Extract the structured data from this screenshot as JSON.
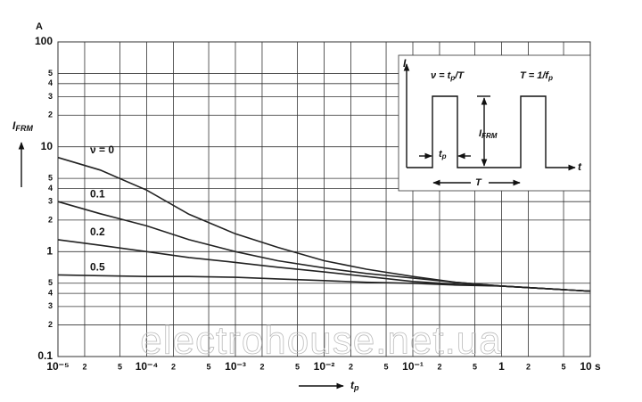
{
  "chart_data": {
    "type": "line",
    "ylabel": {
      "main": "I",
      "sub": "FRM"
    },
    "yunit": "A",
    "xlabel": {
      "main": "t",
      "sub": "p"
    },
    "log_x": true,
    "log_y": true,
    "grid": true,
    "xlim": [
      1e-05,
      10
    ],
    "ylim": [
      0.1,
      100
    ],
    "xticks": [
      {
        "value": 1e-05,
        "label": "10⁻⁵"
      },
      {
        "value": 2e-05,
        "label": "2"
      },
      {
        "value": 5e-05,
        "label": "5"
      },
      {
        "value": 0.0001,
        "label": "10⁻⁴"
      },
      {
        "value": 0.0002,
        "label": "2"
      },
      {
        "value": 0.0005,
        "label": "5"
      },
      {
        "value": 0.001,
        "label": "10⁻³"
      },
      {
        "value": 0.002,
        "label": "2"
      },
      {
        "value": 0.005,
        "label": "5"
      },
      {
        "value": 0.01,
        "label": "10⁻²"
      },
      {
        "value": 0.02,
        "label": "2"
      },
      {
        "value": 0.05,
        "label": "5"
      },
      {
        "value": 0.1,
        "label": "10⁻¹"
      },
      {
        "value": 0.2,
        "label": "2"
      },
      {
        "value": 0.5,
        "label": "5"
      },
      1,
      {
        "value": 2,
        "label": "2"
      },
      {
        "value": 5,
        "label": "5"
      },
      {
        "value": 10,
        "label": "10 s"
      }
    ],
    "yticks": [
      0.1,
      {
        "value": 0.2,
        "label": "2"
      },
      {
        "value": 0.3,
        "label": "3"
      },
      {
        "value": 0.4,
        "label": "4"
      },
      {
        "value": 0.5,
        "label": "5"
      },
      1,
      {
        "value": 2,
        "label": "2"
      },
      {
        "value": 3,
        "label": "3"
      },
      {
        "value": 4,
        "label": "4"
      },
      {
        "value": 5,
        "label": "5"
      },
      10,
      {
        "value": 20,
        "label": "2"
      },
      {
        "value": 30,
        "label": "3"
      },
      {
        "value": 40,
        "label": "4"
      },
      {
        "value": 50,
        "label": "5"
      },
      100
    ],
    "x": [
      1e-05,
      3e-05,
      0.0001,
      0.0003,
      0.001,
      0.003,
      0.01,
      0.03,
      0.1,
      0.3,
      1,
      10
    ],
    "series": [
      {
        "name": "ν = 0",
        "color": "#222222",
        "values": [
          7.9,
          6.0,
          3.86,
          2.27,
          1.48,
          1.1,
          0.82,
          0.68,
          0.58,
          0.51,
          0.47,
          0.42
        ]
      },
      {
        "name": "0.1",
        "color": "#222222",
        "values": [
          3.0,
          2.3,
          1.76,
          1.3,
          1.0,
          0.82,
          0.7,
          0.62,
          0.56,
          0.51,
          0.47,
          0.42
        ]
      },
      {
        "name": "0.2",
        "color": "#222222",
        "values": [
          1.3,
          1.15,
          1.0,
          0.88,
          0.79,
          0.71,
          0.64,
          0.58,
          0.52,
          0.49,
          0.47,
          0.42
        ]
      },
      {
        "name": "0.5",
        "color": "#222222",
        "values": [
          0.6,
          0.59,
          0.58,
          0.58,
          0.57,
          0.55,
          0.53,
          0.51,
          0.5,
          0.48,
          0.47,
          0.42
        ]
      }
    ],
    "inset": {
      "y_axis": "I",
      "x_axis": "t",
      "duty": {
        "main": "ν = t",
        "sub": "p",
        "tail": "/T"
      },
      "period": {
        "main": "T = 1/f",
        "sub": "p"
      },
      "amplitude": {
        "main": "I",
        "sub": "FRM"
      },
      "width": {
        "main": "t",
        "sub": "p"
      },
      "period_mark": "T"
    },
    "watermark": "electrohouse.net.ua"
  }
}
